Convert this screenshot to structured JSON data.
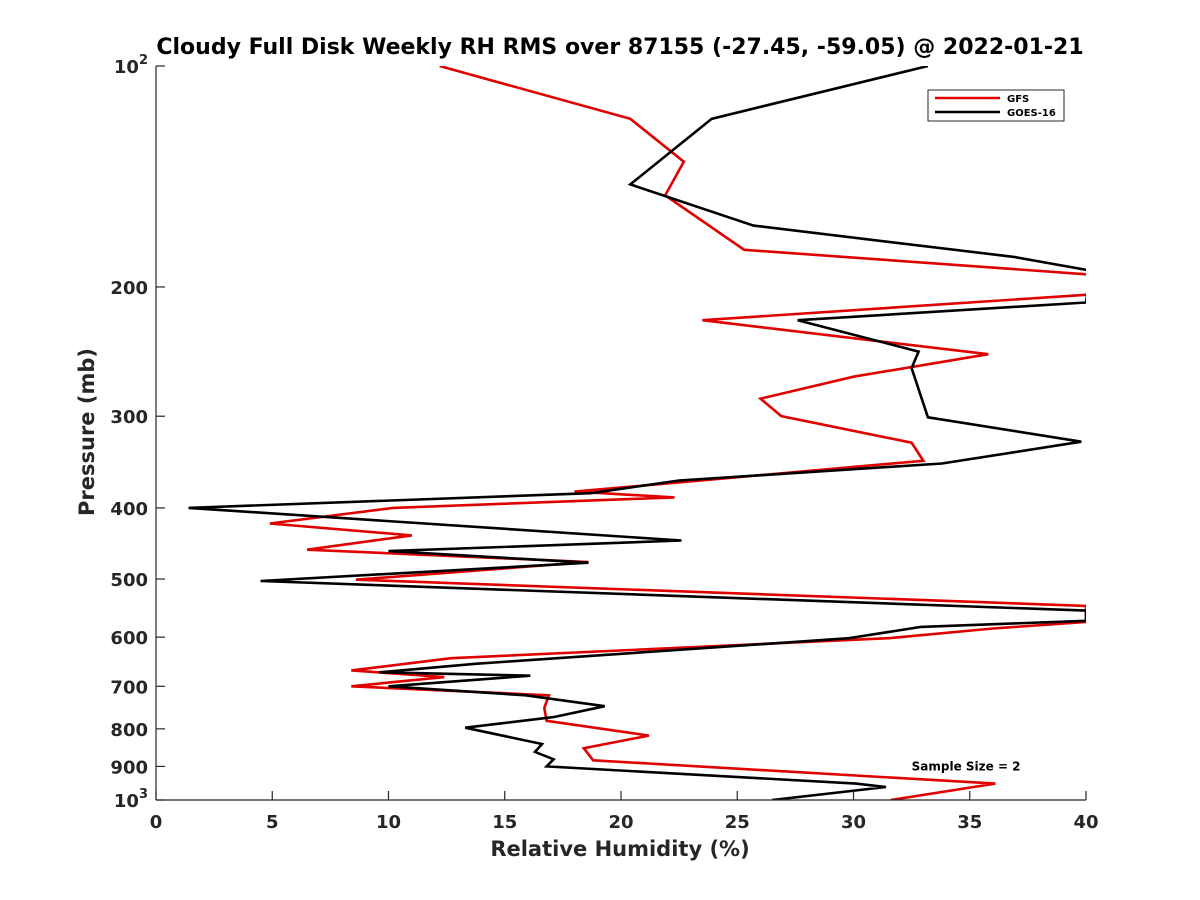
{
  "chart_data": {
    "type": "line",
    "title": "Cloudy Full Disk Weekly RH RMS over 87155 (-27.45, -59.05) @ 2022-01-21",
    "xlabel": "Relative Humidity (%)",
    "ylabel": "Pressure (mb)",
    "xlim": [
      0,
      40
    ],
    "ylim": [
      100,
      1000
    ],
    "yscale": "log",
    "y_reversed": true,
    "grid": false,
    "legend_position": "top-right",
    "x_ticks": [
      0,
      5,
      10,
      15,
      20,
      25,
      30,
      35,
      40
    ],
    "x_tick_labels": [
      "0",
      "5",
      "10",
      "15",
      "20",
      "25",
      "30",
      "35",
      "40"
    ],
    "y_ticks": [
      100,
      200,
      300,
      400,
      500,
      600,
      700,
      800,
      900,
      1000
    ],
    "y_tick_labels": [
      {
        "base": "10",
        "exp": "2"
      },
      {
        "base": "200",
        "exp": ""
      },
      {
        "base": "300",
        "exp": ""
      },
      {
        "base": "400",
        "exp": ""
      },
      {
        "base": "500",
        "exp": ""
      },
      {
        "base": "600",
        "exp": ""
      },
      {
        "base": "700",
        "exp": ""
      },
      {
        "base": "800",
        "exp": ""
      },
      {
        "base": "900",
        "exp": ""
      },
      {
        "base": "10",
        "exp": "3"
      }
    ],
    "series": [
      {
        "name": "GFS",
        "color": "#e00000",
        "points": [
          [
            12.2,
            100
          ],
          [
            20.4,
            118
          ],
          [
            22.7,
            135
          ],
          [
            21.9,
            150
          ],
          [
            25.3,
            178
          ],
          [
            40.8,
            193
          ],
          [
            40.0,
            205
          ],
          [
            23.5,
            222
          ],
          [
            35.8,
            247
          ],
          [
            30.0,
            265
          ],
          [
            26.0,
            284
          ],
          [
            26.9,
            300
          ],
          [
            32.5,
            326
          ],
          [
            33.0,
            345
          ],
          [
            18.0,
            380
          ],
          [
            22.3,
            387
          ],
          [
            10.2,
            400
          ],
          [
            4.9,
            420
          ],
          [
            11.0,
            436
          ],
          [
            6.5,
            456
          ],
          [
            18.6,
            474
          ],
          [
            8.6,
            501
          ],
          [
            40.0,
            544
          ],
          [
            40.0,
            572
          ],
          [
            36.0,
            584
          ],
          [
            31.5,
            602
          ],
          [
            12.7,
            641
          ],
          [
            8.4,
            666
          ],
          [
            12.4,
            680
          ],
          [
            8.4,
            700
          ],
          [
            16.9,
            720
          ],
          [
            16.7,
            749
          ],
          [
            16.8,
            780
          ],
          [
            21.2,
            817
          ],
          [
            18.4,
            850
          ],
          [
            18.8,
            883
          ],
          [
            36.1,
            950
          ],
          [
            31.6,
            1000
          ]
        ]
      },
      {
        "name": "GOES-16",
        "color": "#000000",
        "points": [
          [
            33.2,
            100
          ],
          [
            23.9,
            118
          ],
          [
            20.4,
            145
          ],
          [
            25.7,
            165
          ],
          [
            36.9,
            182
          ],
          [
            40.2,
            190
          ],
          [
            40.0,
            210
          ],
          [
            27.6,
            222
          ],
          [
            32.8,
            245
          ],
          [
            32.5,
            258
          ],
          [
            33.2,
            301
          ],
          [
            39.8,
            325
          ],
          [
            33.8,
            348
          ],
          [
            22.5,
            367
          ],
          [
            18.7,
            382
          ],
          [
            1.4,
            400
          ],
          [
            22.6,
            443
          ],
          [
            10.0,
            458
          ],
          [
            18.6,
            475
          ],
          [
            4.5,
            503
          ],
          [
            40.0,
            552
          ],
          [
            40.0,
            570
          ],
          [
            32.9,
            581
          ],
          [
            29.8,
            602
          ],
          [
            13.8,
            652
          ],
          [
            9.6,
            670
          ],
          [
            16.1,
            677
          ],
          [
            10.0,
            700
          ],
          [
            15.9,
            720
          ],
          [
            19.3,
            745
          ],
          [
            17.1,
            771
          ],
          [
            13.3,
            797
          ],
          [
            16.6,
            839
          ],
          [
            16.3,
            860
          ],
          [
            17.1,
            880
          ],
          [
            16.8,
            900
          ],
          [
            30.1,
            950
          ],
          [
            31.4,
            960
          ],
          [
            26.5,
            1000
          ]
        ]
      }
    ],
    "annotations": [
      {
        "text": "Sample Size = 2",
        "x": 32.5,
        "y": 900
      }
    ]
  }
}
